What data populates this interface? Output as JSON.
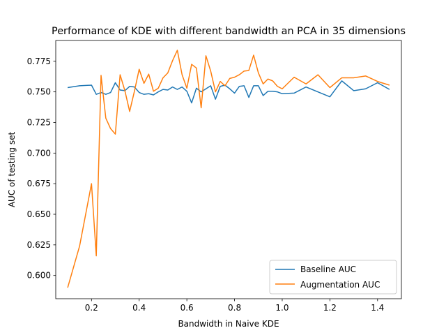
{
  "chart_data": {
    "type": "line",
    "title": "Performance of KDE with different bandwidth an PCA in 35 dimensions",
    "xlabel": "Bandwidth in Naive KDE",
    "ylabel": "AUC of testing set",
    "xlim": [
      0.05,
      1.5
    ],
    "ylim": [
      0.581,
      0.792
    ],
    "xticks": [
      0.2,
      0.4,
      0.6,
      0.8,
      1.0,
      1.2,
      1.4
    ],
    "xtick_labels": [
      "0.2",
      "0.4",
      "0.6",
      "0.8",
      "1.0",
      "1.2",
      "1.4"
    ],
    "yticks": [
      0.6,
      0.625,
      0.65,
      0.675,
      0.7,
      0.725,
      0.75,
      0.775
    ],
    "ytick_labels": [
      "0.600",
      "0.625",
      "0.650",
      "0.675",
      "0.700",
      "0.725",
      "0.750",
      "0.775"
    ],
    "grid": false,
    "legend_position": "lower-right",
    "series": [
      {
        "name": "Baseline AUC",
        "color": "#1f77b4",
        "x": [
          0.1,
          0.15,
          0.2,
          0.22,
          0.24,
          0.26,
          0.28,
          0.3,
          0.32,
          0.34,
          0.36,
          0.38,
          0.4,
          0.42,
          0.44,
          0.46,
          0.48,
          0.5,
          0.52,
          0.54,
          0.56,
          0.58,
          0.6,
          0.62,
          0.64,
          0.66,
          0.68,
          0.7,
          0.72,
          0.74,
          0.76,
          0.78,
          0.8,
          0.82,
          0.84,
          0.86,
          0.88,
          0.9,
          0.92,
          0.94,
          0.96,
          0.98,
          1.0,
          1.05,
          1.1,
          1.15,
          1.2,
          1.25,
          1.3,
          1.35,
          1.4,
          1.45
        ],
        "values": [
          0.7535,
          0.755,
          0.7555,
          0.748,
          0.7495,
          0.748,
          0.7495,
          0.7575,
          0.7515,
          0.751,
          0.7545,
          0.754,
          0.7495,
          0.748,
          0.7485,
          0.7475,
          0.75,
          0.752,
          0.7515,
          0.754,
          0.752,
          0.754,
          0.7505,
          0.741,
          0.753,
          0.75,
          0.7525,
          0.755,
          0.744,
          0.7545,
          0.7555,
          0.7525,
          0.749,
          0.7545,
          0.755,
          0.7455,
          0.755,
          0.755,
          0.747,
          0.7505,
          0.7505,
          0.75,
          0.7485,
          0.749,
          0.754,
          0.75,
          0.746,
          0.759,
          0.751,
          0.7525,
          0.7575,
          0.752
        ]
      },
      {
        "name": "Augmentation AUC",
        "color": "#ff7f0e",
        "x": [
          0.1,
          0.15,
          0.2,
          0.22,
          0.24,
          0.26,
          0.28,
          0.3,
          0.32,
          0.34,
          0.36,
          0.38,
          0.4,
          0.42,
          0.44,
          0.46,
          0.48,
          0.5,
          0.52,
          0.54,
          0.56,
          0.58,
          0.6,
          0.62,
          0.64,
          0.66,
          0.68,
          0.7,
          0.72,
          0.74,
          0.76,
          0.78,
          0.8,
          0.82,
          0.84,
          0.86,
          0.88,
          0.9,
          0.92,
          0.94,
          0.96,
          0.98,
          1.0,
          1.05,
          1.1,
          1.15,
          1.2,
          1.25,
          1.3,
          1.35,
          1.4,
          1.45
        ],
        "values": [
          0.59,
          0.624,
          0.675,
          0.616,
          0.7635,
          0.7285,
          0.72,
          0.7155,
          0.764,
          0.751,
          0.734,
          0.7505,
          0.7685,
          0.757,
          0.7645,
          0.7505,
          0.753,
          0.7615,
          0.7655,
          0.7755,
          0.784,
          0.764,
          0.753,
          0.7725,
          0.7695,
          0.737,
          0.7795,
          0.767,
          0.75,
          0.7585,
          0.755,
          0.761,
          0.762,
          0.764,
          0.767,
          0.7675,
          0.78,
          0.7655,
          0.7565,
          0.7605,
          0.759,
          0.7545,
          0.7525,
          0.762,
          0.7565,
          0.764,
          0.7535,
          0.7615,
          0.7615,
          0.763,
          0.7585,
          0.7555
        ]
      }
    ]
  }
}
